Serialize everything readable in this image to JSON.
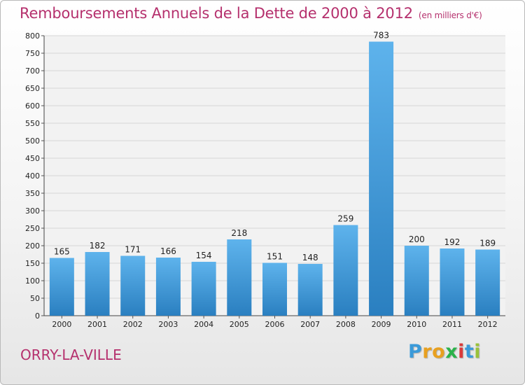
{
  "title": "Remboursements Annuels de la Dette de 2000 à 2012",
  "unit_note": "(en milliers d'€)",
  "commune": "ORRY-LA-VILLE",
  "logo": {
    "letters": [
      "P",
      "r",
      "o",
      "x",
      "i",
      "t",
      "i"
    ],
    "colors": [
      "#3a9ad9",
      "#e8a020",
      "#e8a020",
      "#2bb24a",
      "#d93a3a",
      "#3a9ad9",
      "#9ac23a"
    ]
  },
  "chart_data": {
    "type": "bar",
    "categories": [
      "2000",
      "2001",
      "2002",
      "2003",
      "2004",
      "2005",
      "2006",
      "2007",
      "2008",
      "2009",
      "2010",
      "2011",
      "2012"
    ],
    "values": [
      165,
      182,
      171,
      166,
      154,
      218,
      151,
      148,
      259,
      783,
      200,
      192,
      189
    ],
    "title": "Remboursements Annuels de la Dette de 2000 à 2012",
    "ylim": [
      0,
      800
    ],
    "yticks": [
      0,
      50,
      100,
      150,
      200,
      250,
      300,
      350,
      400,
      450,
      500,
      550,
      600,
      650,
      700,
      750,
      800
    ],
    "grid": true,
    "bar_color": "#3a8fd6"
  }
}
